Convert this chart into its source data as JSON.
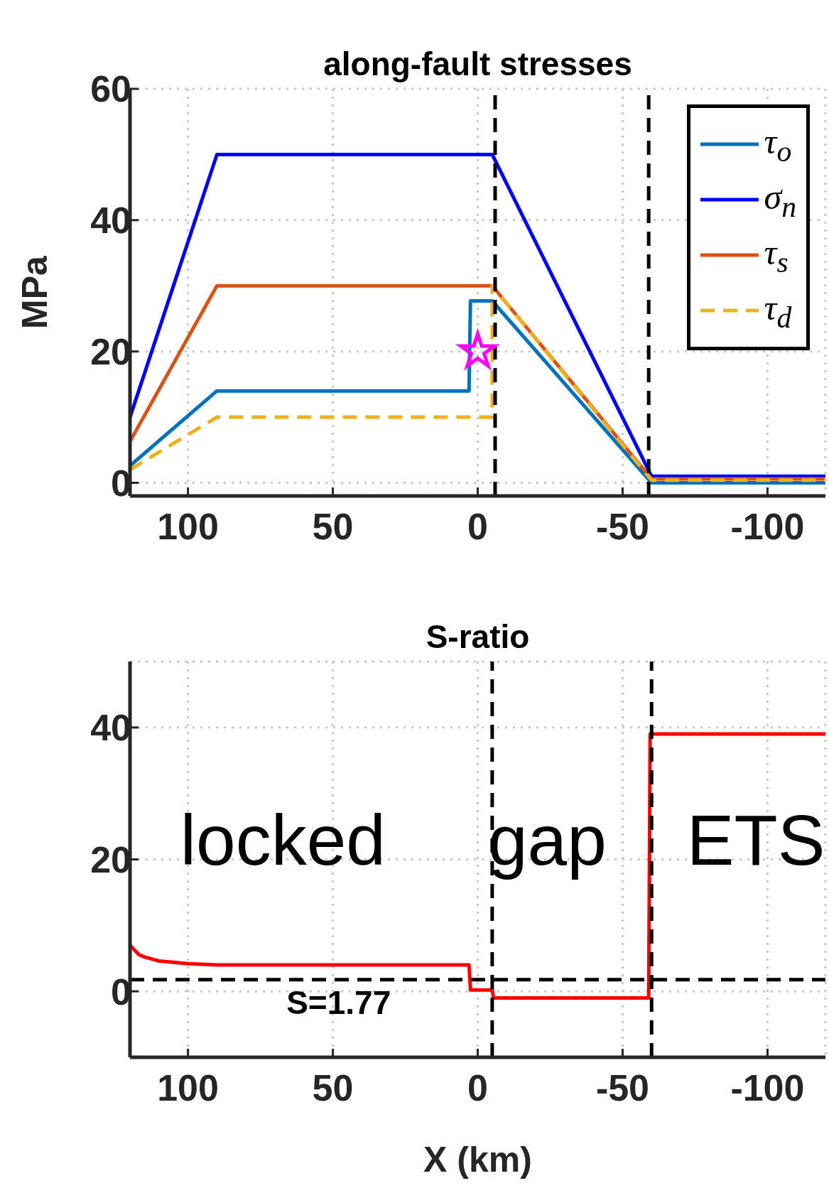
{
  "chart_data": [
    {
      "type": "line",
      "title": "along-fault stresses",
      "ylabel": "MPa",
      "xlim": [
        120,
        -120
      ],
      "xticks": [
        100,
        50,
        0,
        -50,
        -100
      ],
      "ylim": [
        -2,
        60
      ],
      "yticks": [
        0,
        20,
        40,
        60
      ],
      "grid": true,
      "legend": "top right",
      "marker": "none",
      "line_style": "solid",
      "series": [
        {
          "name": "τ$_{o}$",
          "color": "#0072bd",
          "x": [
            120,
            90,
            3,
            2.5,
            -5,
            -60,
            -120
          ],
          "values": [
            2.6,
            14,
            14,
            27.7,
            27.7,
            0,
            0
          ]
        },
        {
          "name": "σ$_{n}$",
          "color": "#0000ff",
          "x": [
            120,
            90,
            -5,
            -60,
            -120
          ],
          "values": [
            10,
            50,
            50,
            1,
            1
          ]
        },
        {
          "name": "τ$_{s}$",
          "color": "#d95319",
          "x": [
            120,
            90,
            -5,
            -60,
            -120
          ],
          "values": [
            6.3,
            30,
            30,
            0.6,
            0.6
          ]
        },
        {
          "name": "τ$_{d}$",
          "color": "#edb120",
          "line_style": "dashed",
          "x": [
            120,
            90,
            -5,
            -5,
            -60,
            -120
          ],
          "values": [
            2,
            10,
            10,
            30,
            0.4,
            0.4
          ]
        },
        {
          "type": "scatter",
          "color": "#ff00ff",
          "marker": "star",
          "x": [
            0
          ],
          "values": [
            20
          ]
        }
      ],
      "ref_lines": [
        {
          "axis": "x",
          "value": -6,
          "color": "#000000",
          "line_style": "dashed"
        },
        {
          "axis": "x",
          "value": -59,
          "color": "#000000",
          "line_style": "dashed"
        }
      ]
    },
    {
      "type": "line",
      "title": "S-ratio",
      "xlabel": "X (km)",
      "xlim": [
        120,
        -120
      ],
      "xticks": [
        100,
        50,
        0,
        -50,
        -100
      ],
      "ylim": [
        -10,
        50
      ],
      "yticks": [
        0,
        20,
        40
      ],
      "grid": true,
      "marker": "none",
      "line_style": "solid",
      "series": [
        {
          "color": "#ff0000",
          "x": [
            120,
            117,
            115,
            110,
            105,
            100,
            90,
            3,
            2.5,
            -5,
            -5.5,
            -59,
            -59.5,
            -120
          ],
          "values": [
            7,
            5.6,
            5.2,
            4.6,
            4.4,
            4.2,
            4,
            4,
            0.2,
            0.2,
            -1,
            -1,
            39,
            39
          ]
        }
      ],
      "ref_lines": [
        {
          "axis": "x",
          "value": -5,
          "color": "#000000",
          "line_style": "dashed"
        },
        {
          "axis": "x",
          "value": -60,
          "color": "#000000",
          "line_style": "dashed"
        },
        {
          "axis": "y",
          "value": 1.77,
          "label": "S=1.77",
          "color": "#000000",
          "line_style": "dashed"
        }
      ],
      "annotations": [
        "locked",
        "gap",
        "ETS"
      ]
    }
  ]
}
